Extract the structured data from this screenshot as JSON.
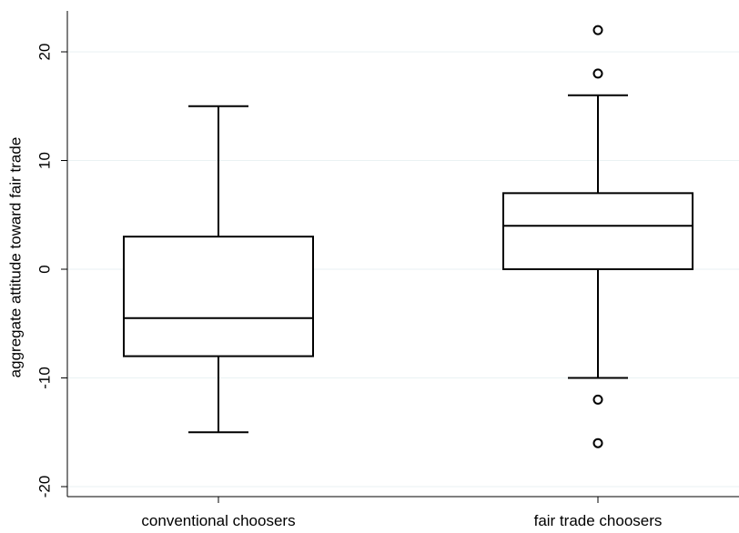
{
  "chart_data": {
    "type": "boxplot",
    "title": "",
    "xlabel": "",
    "ylabel": "aggregate attitude toward fair trade",
    "ylim": [
      -22,
      24
    ],
    "yticks": [
      -20,
      -10,
      0,
      10,
      20
    ],
    "grid": true,
    "categories": [
      "conventional choosers",
      "fair trade choosers"
    ],
    "boxes": [
      {
        "category": "conventional choosers",
        "whisker_low": -15,
        "q1": -8,
        "median": -4.5,
        "q3": 3,
        "whisker_high": 15,
        "outliers": []
      },
      {
        "category": "fair trade choosers",
        "whisker_low": -10,
        "q1": 0,
        "median": 4,
        "q3": 7,
        "whisker_high": 16,
        "outliers": [
          22,
          18,
          -12,
          -16
        ]
      }
    ],
    "colors": {
      "gridline": "#eaf2f3",
      "stroke": "#000000",
      "box_fill": "#ffffff"
    }
  }
}
